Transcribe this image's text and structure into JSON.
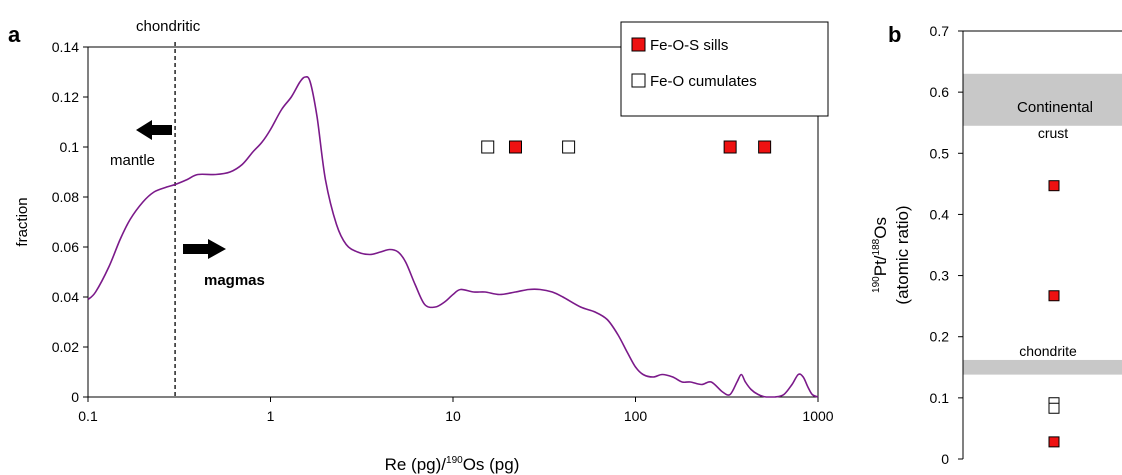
{
  "chart_data": [
    {
      "panel": "a",
      "type": "line",
      "xscale": "log",
      "xlim": [
        0.1,
        1000
      ],
      "ylim": [
        0,
        0.14
      ],
      "xlabel_parts": {
        "a": "Re (pg)/",
        "sup": "190",
        "b": "Os (pg)"
      },
      "ylabel": "fraction",
      "x_ticks": [
        0.1,
        1,
        10,
        100,
        1000
      ],
      "x_tick_labels": [
        "0.1",
        "1",
        "10",
        "100",
        "1000"
      ],
      "y_ticks": [
        0,
        0.02,
        0.04,
        0.06,
        0.08,
        0.1,
        0.12,
        0.14
      ],
      "y_tick_labels": [
        "0",
        "0.02",
        "0.04",
        "0.06",
        "0.08",
        "0.1",
        "0.12",
        "0.14"
      ],
      "line_color": "#7b1a8a",
      "curve": {
        "x": [
          0.1,
          0.11,
          0.13,
          0.15,
          0.17,
          0.2,
          0.23,
          0.27,
          0.3,
          0.35,
          0.4,
          0.5,
          0.6,
          0.7,
          0.8,
          0.9,
          1.0,
          1.15,
          1.3,
          1.45,
          1.55,
          1.65,
          1.8,
          2.0,
          2.3,
          2.6,
          3.0,
          3.5,
          4.0,
          4.5,
          5.0,
          5.5,
          6.2,
          7.0,
          8.0,
          9.0,
          10,
          11,
          13,
          15,
          18,
          22,
          26,
          30,
          35,
          40,
          50,
          60,
          70,
          80,
          90,
          100,
          110,
          125,
          140,
          160,
          180,
          200,
          230,
          260,
          300,
          330,
          360,
          380,
          400,
          430,
          470,
          520,
          580,
          650,
          720,
          780,
          830,
          880,
          930,
          1000
        ],
        "y": [
          0.039,
          0.042,
          0.052,
          0.063,
          0.071,
          0.078,
          0.082,
          0.084,
          0.085,
          0.087,
          0.089,
          0.089,
          0.09,
          0.093,
          0.098,
          0.102,
          0.107,
          0.115,
          0.12,
          0.126,
          0.128,
          0.126,
          0.112,
          0.087,
          0.069,
          0.061,
          0.058,
          0.057,
          0.058,
          0.059,
          0.058,
          0.054,
          0.045,
          0.037,
          0.036,
          0.038,
          0.041,
          0.043,
          0.042,
          0.042,
          0.041,
          0.042,
          0.043,
          0.043,
          0.042,
          0.04,
          0.036,
          0.034,
          0.031,
          0.025,
          0.018,
          0.012,
          0.009,
          0.008,
          0.009,
          0.008,
          0.006,
          0.006,
          0.005,
          0.006,
          0.002,
          0.001,
          0.006,
          0.009,
          0.006,
          0.003,
          0.001,
          0.0,
          0.0,
          0.001,
          0.005,
          0.009,
          0.008,
          0.004,
          0.001,
          0.0
        ]
      },
      "points": [
        {
          "x": 15.5,
          "y": 0.1,
          "series": "cumulate"
        },
        {
          "x": 22,
          "y": 0.1,
          "series": "sill"
        },
        {
          "x": 43,
          "y": 0.1,
          "series": "cumulate"
        },
        {
          "x": 330,
          "y": 0.1,
          "series": "sill"
        },
        {
          "x": 510,
          "y": 0.1,
          "series": "sill"
        }
      ],
      "reference_line": {
        "x": 0.3,
        "label": "chondritic"
      },
      "annotations": [
        {
          "text": "mantle",
          "style": "normal",
          "arrow": "left"
        },
        {
          "text": "magmas",
          "style": "bold",
          "arrow": "right"
        }
      ],
      "legend": {
        "placement": "top-right",
        "entries": [
          {
            "label": "Fe-O-S sills",
            "series": "sill",
            "fill": "#ee1111"
          },
          {
            "label": "Fe-O cumulates",
            "series": "cumulate",
            "fill": "#ffffff"
          }
        ]
      }
    },
    {
      "panel": "b",
      "type": "scatter",
      "ylim": [
        0,
        0.7
      ],
      "y_ticks": [
        0,
        0.1,
        0.2,
        0.3,
        0.4,
        0.5,
        0.6,
        0.7
      ],
      "y_tick_labels": [
        "0",
        "0.1",
        "0.2",
        "0.3",
        "0.4",
        "0.5",
        "0.6",
        "0.7"
      ],
      "ylabel_parts": {
        "sup1": "190",
        "a": "Pt/",
        "sup2": "188",
        "b": "Os",
        "line2": "(atomic ratio)"
      },
      "points": [
        {
          "y": 0.447,
          "series": "sill"
        },
        {
          "y": 0.267,
          "series": "sill"
        },
        {
          "y": 0.092,
          "series": "cumulate"
        },
        {
          "y": 0.083,
          "series": "cumulate"
        },
        {
          "y": 0.028,
          "series": "sill"
        }
      ],
      "bands": [
        {
          "ymin": 0.545,
          "ymax": 0.63,
          "label_line1": "Continental",
          "label_line2": "crust",
          "color": "#c8c8c8"
        },
        {
          "ymin": 0.138,
          "ymax": 0.162,
          "label_line1": "chondrite",
          "label_line2": "",
          "color": "#c8c8c8"
        }
      ]
    }
  ]
}
